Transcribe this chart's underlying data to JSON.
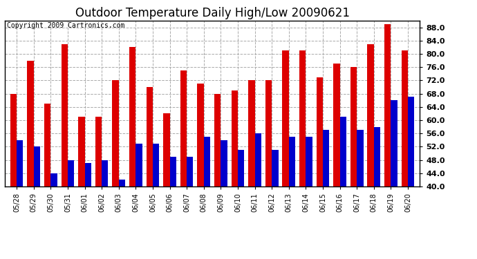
{
  "title": "Outdoor Temperature Daily High/Low 20090621",
  "copyright": "Copyright 2009 Cartronics.com",
  "dates": [
    "05/28",
    "05/29",
    "05/30",
    "05/31",
    "06/01",
    "06/02",
    "06/03",
    "06/04",
    "06/05",
    "06/06",
    "06/07",
    "06/08",
    "06/09",
    "06/10",
    "06/11",
    "06/12",
    "06/13",
    "06/14",
    "06/15",
    "06/16",
    "06/17",
    "06/18",
    "06/19",
    "06/20"
  ],
  "highs": [
    68,
    78,
    65,
    83,
    61,
    61,
    72,
    82,
    70,
    62,
    75,
    71,
    68,
    69,
    72,
    72,
    81,
    81,
    73,
    77,
    76,
    83,
    89,
    81
  ],
  "lows": [
    54,
    52,
    44,
    48,
    47,
    48,
    42,
    53,
    53,
    49,
    49,
    55,
    54,
    51,
    56,
    51,
    55,
    55,
    57,
    61,
    57,
    58,
    66,
    67
  ],
  "high_color": "#dd0000",
  "low_color": "#0000cc",
  "ylim_min": 40,
  "ylim_max": 90,
  "yticks": [
    40,
    44,
    48,
    52,
    56,
    60,
    64,
    68,
    72,
    76,
    80,
    84,
    88
  ],
  "background_color": "#ffffff",
  "grid_color": "#aaaaaa",
  "title_fontsize": 12,
  "copyright_fontsize": 7,
  "tick_fontsize": 8,
  "xlabel_fontsize": 7
}
